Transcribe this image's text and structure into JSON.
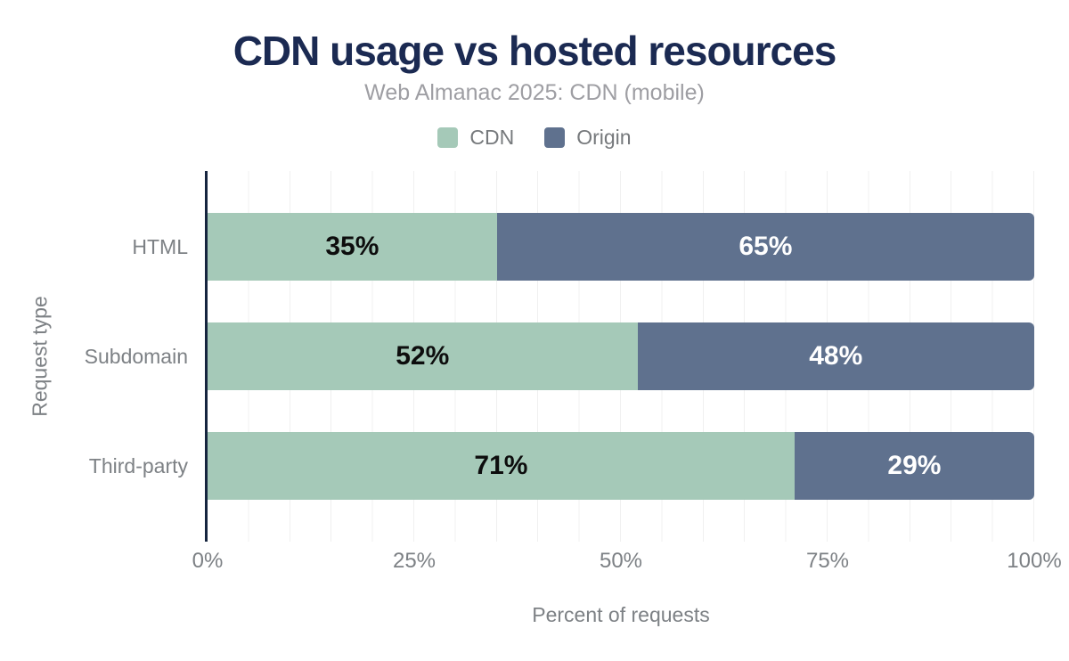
{
  "chart_data": {
    "type": "bar",
    "orientation": "horizontal",
    "stacked": true,
    "title": "CDN usage vs hosted resources",
    "subtitle": "Web Almanac 2025: CDN (mobile)",
    "categories": [
      "HTML",
      "Subdomain",
      "Third-party"
    ],
    "series": [
      {
        "name": "CDN",
        "color": "#a5c9b8",
        "label_color": "#0d0d0d",
        "values": [
          35,
          52,
          71
        ]
      },
      {
        "name": "Origin",
        "color": "#5f718e",
        "label_color": "#ffffff",
        "values": [
          65,
          48,
          29
        ]
      }
    ],
    "value_suffix": "%",
    "xlabel": "Percent of requests",
    "ylabel": "Request type",
    "xlim": [
      0,
      100
    ],
    "xticks": [
      {
        "label": "0%",
        "value": 0
      },
      {
        "label": "25%",
        "value": 25
      },
      {
        "label": "50%",
        "value": 50
      },
      {
        "label": "75%",
        "value": 75
      },
      {
        "label": "100%",
        "value": 100
      }
    ],
    "grid": {
      "show": true,
      "interval": 5,
      "color": "#f0f0f0"
    },
    "legend_position": "top",
    "colors": {
      "title": "#1b2a52",
      "subtitle": "#9e9ea3",
      "axis_line": "#16253f",
      "axis_text": "#7d8185"
    }
  }
}
